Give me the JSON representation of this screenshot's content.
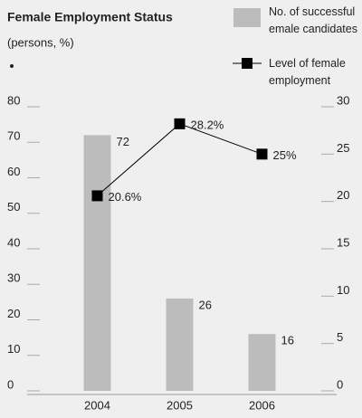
{
  "chart_data": {
    "type": "bar",
    "title": "Female Employment Status",
    "subtitle": "(persons, %)",
    "categories": [
      "2004",
      "2005",
      "2006"
    ],
    "series": [
      {
        "name": "No. of successful emale candidates",
        "type": "bar",
        "color": "#bcbcbc",
        "values": [
          72,
          26,
          16
        ]
      },
      {
        "name": "Level of female employment",
        "type": "line",
        "axis": "y2",
        "color": "#000000",
        "values": [
          20.6,
          28.2,
          25
        ],
        "value_labels": [
          "20.6%",
          "28.2%",
          "25%"
        ]
      }
    ],
    "ylim": [
      0,
      80
    ],
    "yticks": [
      0,
      10,
      20,
      30,
      40,
      50,
      60,
      70,
      80
    ],
    "y2lim": [
      0,
      30
    ],
    "y2ticks": [
      0,
      5,
      10,
      15,
      20,
      25,
      30
    ],
    "legend": "top-right"
  }
}
